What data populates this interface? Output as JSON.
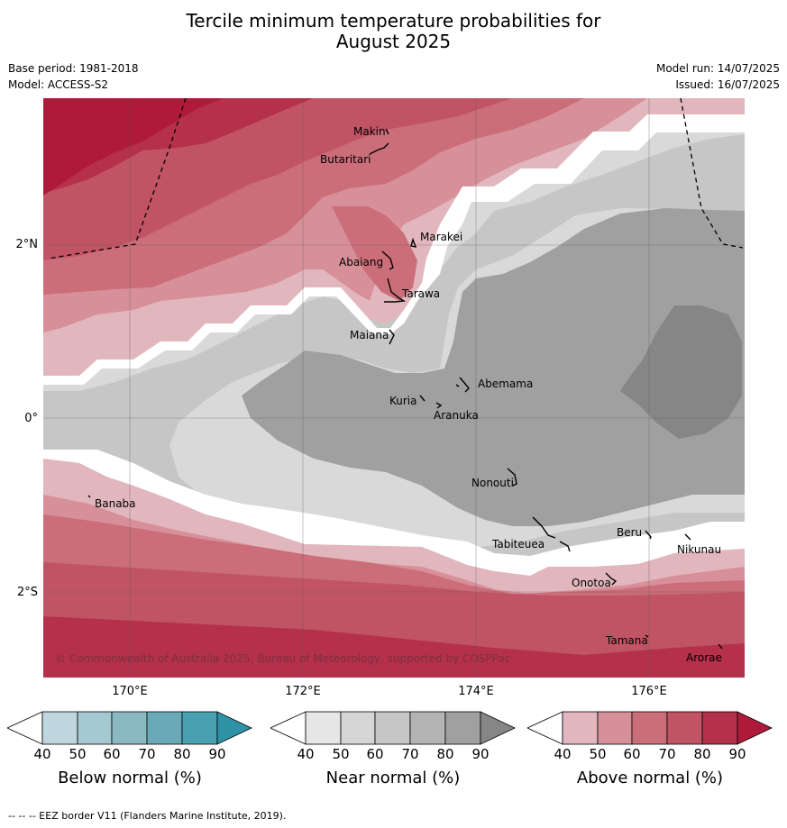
{
  "title_line1": "Tercile minimum temperature probabilities for",
  "title_line2": "August 2025",
  "base_period": "Base period: 1981-2018",
  "model": "Model: ACCESS-S2",
  "model_run": "Model run: 14/07/2025",
  "issued": "Issued: 16/07/2025",
  "latitude_labels": [
    "2°N",
    "0°",
    "2°S"
  ],
  "longitude_labels": [
    "170°E",
    "172°E",
    "174°E",
    "176°E"
  ],
  "islands": [
    "Makin",
    "Butaritari",
    "Marakei",
    "Abaiang",
    "Tarawa",
    "Maiana",
    "Abemama",
    "Kuria",
    "Aranuka",
    "Nonouti",
    "Banaba",
    "Beru",
    "Tabiteuea",
    "Nikunau",
    "Onotoa",
    "Tamana",
    "Arorae"
  ],
  "copyright": "© Commonwealth of Australia 2025, Bureau of Meteorology, supported by COSPPac",
  "colorbars": [
    {
      "title": "Below normal (%)",
      "ticks": [
        "40",
        "50",
        "60",
        "70",
        "80",
        "90"
      ],
      "colors": [
        "#ffffff",
        "#bfd6de",
        "#a5c9d0",
        "#8ab9c4",
        "#6aaab8",
        "#48a1b1",
        "#2f93a8"
      ]
    },
    {
      "title": "Near normal (%)",
      "ticks": [
        "40",
        "50",
        "60",
        "70",
        "80",
        "90"
      ],
      "colors": [
        "#ffffff",
        "#e6e6e6",
        "#d6d6d6",
        "#c6c6c6",
        "#b4b4b4",
        "#a0a0a0",
        "#868686"
      ]
    },
    {
      "title": "Above normal (%)",
      "ticks": [
        "40",
        "50",
        "60",
        "70",
        "80",
        "90"
      ],
      "colors": [
        "#ffffff",
        "#e2b6bd",
        "#d78f99",
        "#cb6e79",
        "#c15464",
        "#b5304a",
        "#b01a3a"
      ]
    }
  ],
  "footnote": "--  --  -- EEZ border V11 (Flanders Marine Institute, 2019)."
}
